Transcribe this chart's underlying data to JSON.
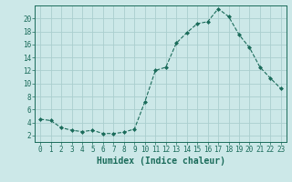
{
  "x": [
    0,
    1,
    2,
    3,
    4,
    5,
    6,
    7,
    8,
    9,
    10,
    11,
    12,
    13,
    14,
    15,
    16,
    17,
    18,
    19,
    20,
    21,
    22,
    23
  ],
  "y": [
    4.5,
    4.3,
    3.2,
    2.8,
    2.6,
    2.8,
    2.3,
    2.3,
    2.5,
    3.0,
    7.2,
    12.0,
    12.5,
    16.2,
    17.8,
    19.2,
    19.5,
    21.5,
    20.3,
    17.5,
    15.5,
    12.5,
    10.8,
    9.2
  ],
  "line_color": "#1a6b5a",
  "marker": "D",
  "marker_size": 2.0,
  "bg_color": "#cce8e8",
  "grid_color": "#aacece",
  "xlabel": "Humidex (Indice chaleur)",
  "xlim": [
    -0.5,
    23.5
  ],
  "ylim": [
    1,
    22
  ],
  "yticks": [
    2,
    4,
    6,
    8,
    10,
    12,
    14,
    16,
    18,
    20
  ],
  "xticks": [
    0,
    1,
    2,
    3,
    4,
    5,
    6,
    7,
    8,
    9,
    10,
    11,
    12,
    13,
    14,
    15,
    16,
    17,
    18,
    19,
    20,
    21,
    22,
    23
  ],
  "tick_color": "#1a6b5a",
  "label_fontsize": 5.5,
  "xlabel_fontsize": 7.0
}
